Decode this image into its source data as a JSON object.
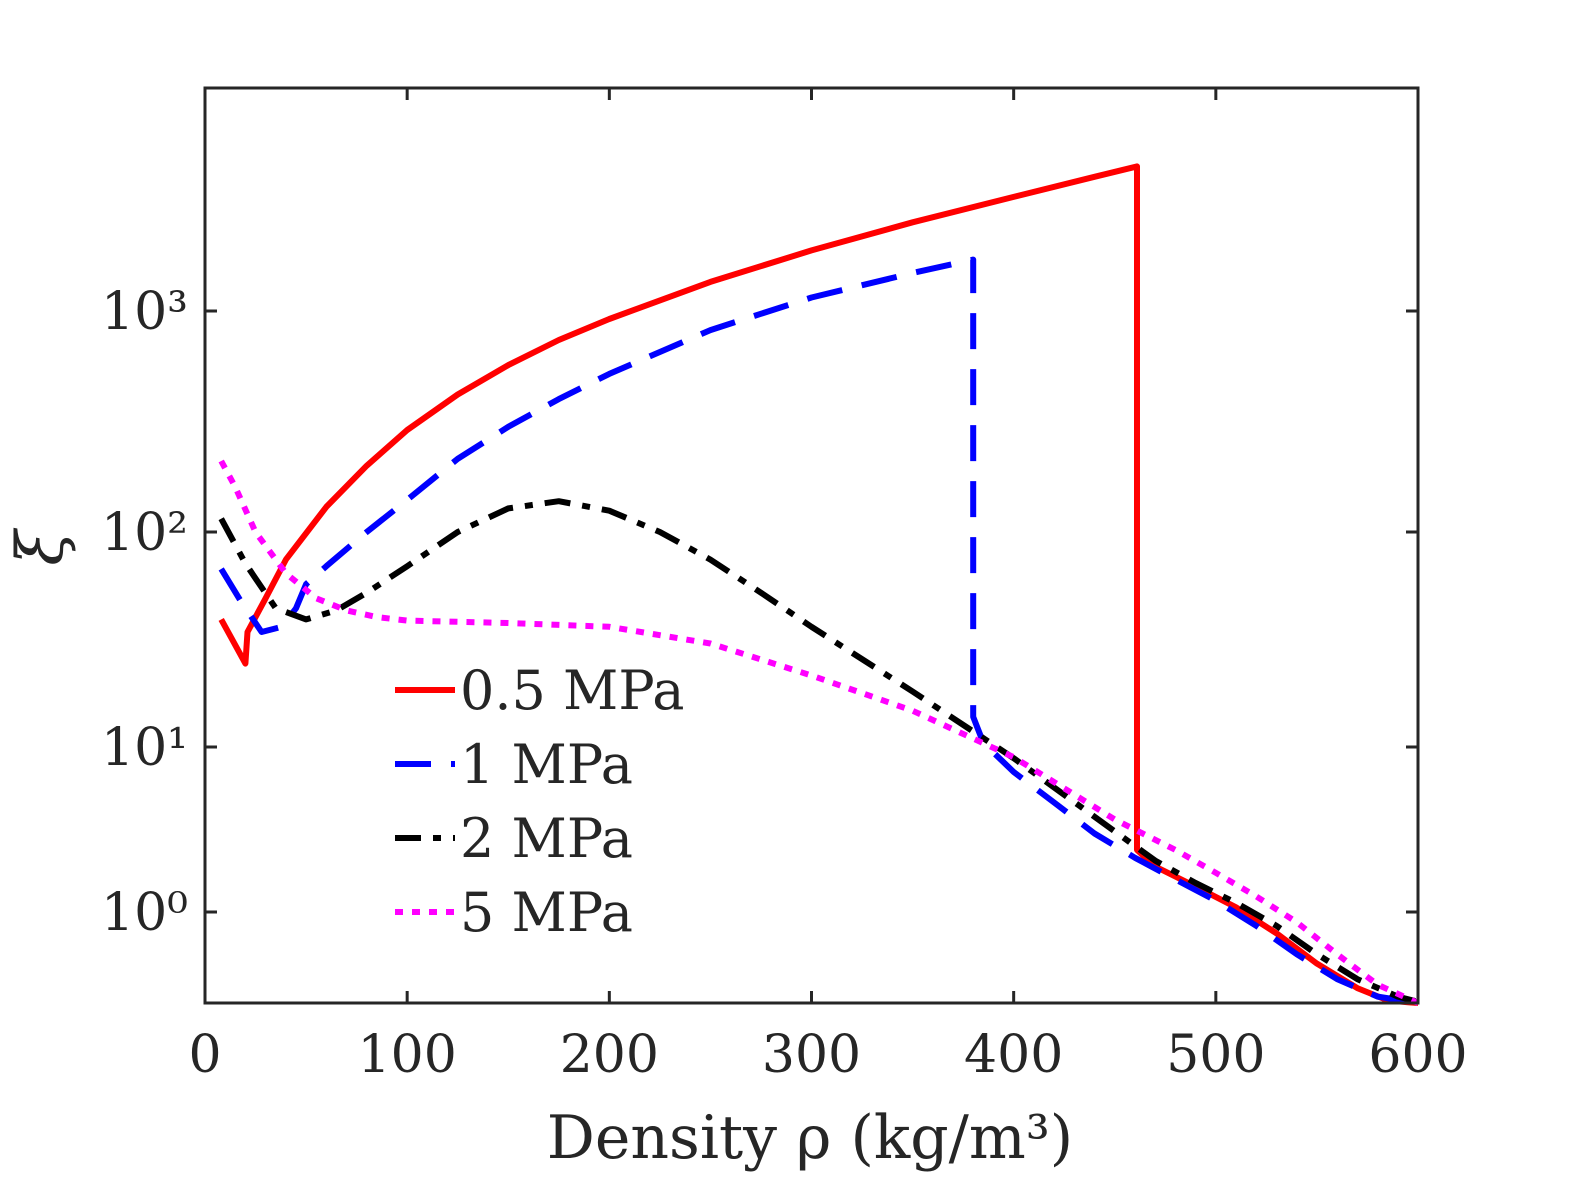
{
  "chart_data": {
    "type": "line",
    "xlabel": "Density ρ (kg/m³)",
    "ylabel": "ξ",
    "xlim": [
      0,
      600
    ],
    "y_scale": "symlog",
    "y_tick_labels": [
      "10⁰",
      "10¹",
      "10²",
      "10³"
    ],
    "x_ticks": [
      0,
      100,
      200,
      300,
      400,
      500,
      600
    ],
    "x_tick_labels": [
      "0",
      "100",
      "200",
      "300",
      "400",
      "500",
      "600"
    ],
    "grid": false,
    "legend_position": "lower-left inside",
    "series": [
      {
        "name": "0.5 MPa",
        "color": "#ff0000",
        "style": "solid",
        "x": [
          8,
          20,
          21,
          30,
          40,
          60,
          80,
          100,
          125,
          150,
          175,
          200,
          250,
          300,
          350,
          400,
          440,
          461,
          461,
          470,
          490,
          510,
          530,
          550,
          570,
          585,
          595,
          600
        ],
        "y": [
          40,
          25,
          35,
          50,
          75,
          130,
          200,
          290,
          420,
          570,
          740,
          920,
          1350,
          1870,
          2500,
          3250,
          4000,
          4450,
          2.8,
          2.2,
          1.6,
          1.1,
          0.7,
          0.35,
          0.12,
          0.02,
          0.005,
          0.0
        ]
      },
      {
        "name": "1 MPa",
        "color": "#0000ff",
        "style": "dashed",
        "x": [
          8,
          18,
          28,
          38,
          45,
          50,
          60,
          80,
          100,
          125,
          150,
          175,
          200,
          250,
          300,
          350,
          380,
          380,
          385,
          400,
          420,
          440,
          460,
          480,
          500,
          520,
          540,
          560,
          580,
          600
        ],
        "y": [
          68,
          48,
          35,
          37,
          45,
          58,
          70,
          100,
          140,
          215,
          300,
          400,
          520,
          820,
          1150,
          1480,
          1700,
          14,
          10.5,
          7.5,
          5.2,
          3.5,
          2.5,
          1.8,
          1.25,
          0.8,
          0.45,
          0.2,
          0.05,
          0.0
        ]
      },
      {
        "name": "2 MPa",
        "color": "#000000",
        "style": "dashdot",
        "x": [
          8,
          20,
          35,
          50,
          65,
          80,
          100,
          125,
          150,
          175,
          200,
          225,
          250,
          275,
          300,
          350,
          400,
          450,
          470,
          490,
          510,
          530,
          550,
          570,
          590,
          600
        ],
        "y": [
          115,
          72,
          45,
          40,
          44,
          53,
          70,
          100,
          128,
          138,
          125,
          100,
          75,
          53,
          37,
          18.5,
          8.8,
          3.6,
          2.4,
          1.7,
          1.2,
          0.8,
          0.45,
          0.2,
          0.05,
          0.01
        ]
      },
      {
        "name": "5 MPa",
        "color": "#ff00ff",
        "style": "dotted",
        "x": [
          8,
          15,
          25,
          40,
          55,
          70,
          85,
          100,
          150,
          200,
          250,
          300,
          350,
          400,
          450,
          480,
          500,
          520,
          540,
          560,
          580,
          600
        ],
        "y": [
          210,
          160,
          100,
          65,
          50,
          44,
          41,
          39.5,
          38.5,
          37,
          31,
          22,
          15,
          8.9,
          4.2,
          2.8,
          2.0,
          1.35,
          0.85,
          0.45,
          0.15,
          0.0
        ]
      }
    ]
  }
}
